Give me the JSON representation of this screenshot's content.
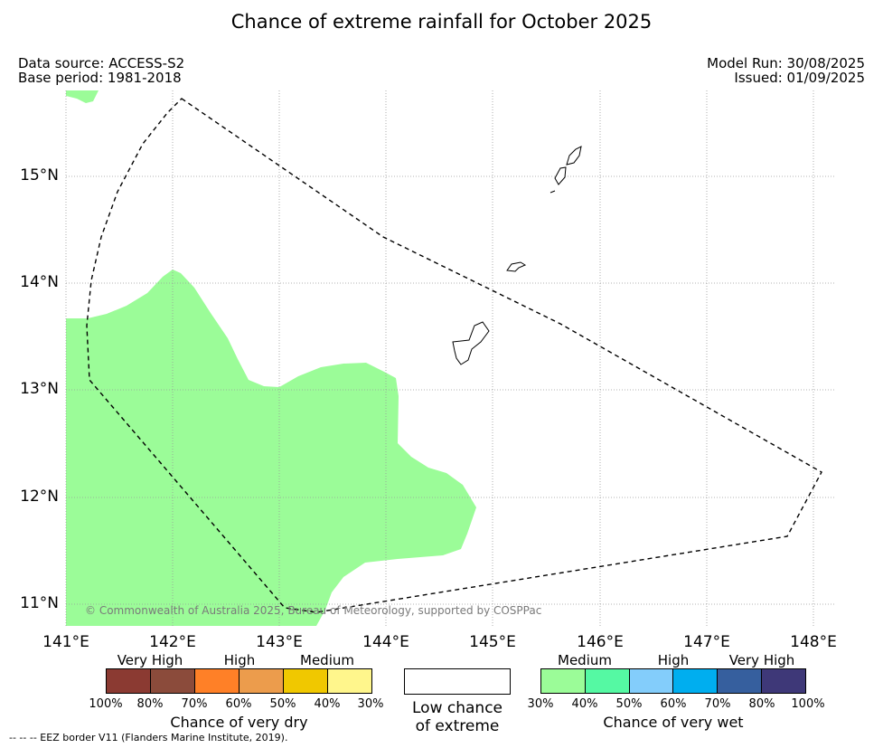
{
  "title": "Chance of extreme rainfall for October 2025",
  "meta_left": {
    "data_source": "Data source: ACCESS-S2",
    "base_period": "Base period: 1981-2018"
  },
  "meta_right": {
    "model_run": "Model Run: 30/08/2025",
    "issued": "Issued: 01/09/2025"
  },
  "map": {
    "lat_labels": [
      "15°N",
      "14°N",
      "13°N",
      "12°N",
      "11°N"
    ],
    "lon_labels": [
      "141°E",
      "142°E",
      "143°E",
      "144°E",
      "145°E",
      "146°E",
      "147°E",
      "148°E"
    ],
    "copyright": "© Commonwealth of Australia 2025, Bureau of Meteorology, supported by COSPPac",
    "wet_region_color": "#9bfc98",
    "wet_region_category": "Medium (30%-40%) chance of very wet",
    "eez_border_style": "dashed black",
    "islands": [
      "Guam",
      "Rota",
      "Tinian",
      "Saipan"
    ]
  },
  "legend_dry": {
    "headers": [
      "Very High",
      "High",
      "Medium"
    ],
    "colors": [
      "#8b3a32",
      "#8b4b3b",
      "#ff8027",
      "#ec9c4c",
      "#f0c800",
      "#fff68c"
    ],
    "ticks": [
      "100%",
      "80%",
      "70%",
      "60%",
      "50%",
      "40%",
      "30%"
    ],
    "title": "Chance of very dry"
  },
  "legend_low": {
    "line1": "Low chance",
    "line2": "of extreme"
  },
  "legend_wet": {
    "headers": [
      "Medium",
      "High",
      "Very High"
    ],
    "colors": [
      "#9bfc98",
      "#55f9a3",
      "#83cdfb",
      "#00aeef",
      "#365f9e",
      "#3e3878"
    ],
    "ticks": [
      "30%",
      "40%",
      "50%",
      "60%",
      "70%",
      "80%",
      "100%"
    ],
    "title": "Chance of very wet"
  },
  "eez_note": "--  --  -- EEZ border V11 (Flanders Marine Institute, 2019)."
}
